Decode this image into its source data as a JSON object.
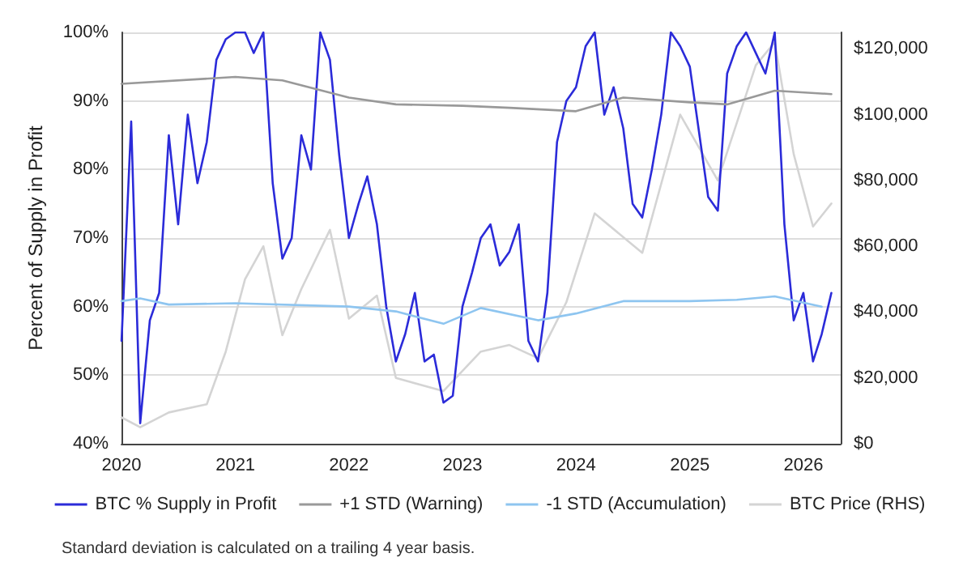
{
  "chart_data": {
    "type": "line",
    "ylabel": "Percent of Supply in Profit",
    "annotations": [
      "Standard deviation is calculated on a trailing 4 year basis."
    ],
    "x": [
      "2020-01",
      "2020-02",
      "2020-03",
      "2020-04",
      "2020-05",
      "2020-06",
      "2020-07",
      "2020-08",
      "2020-09",
      "2020-10",
      "2020-11",
      "2020-12",
      "2021-01",
      "2021-02",
      "2021-03",
      "2021-04",
      "2021-05",
      "2021-06",
      "2021-07",
      "2021-08",
      "2021-09",
      "2021-10",
      "2021-11",
      "2021-12",
      "2022-01",
      "2022-02",
      "2022-03",
      "2022-04",
      "2022-05",
      "2022-06",
      "2022-07",
      "2022-08",
      "2022-09",
      "2022-10",
      "2022-11",
      "2022-12",
      "2023-01",
      "2023-02",
      "2023-03",
      "2023-04",
      "2023-05",
      "2023-06",
      "2023-07",
      "2023-08",
      "2023-09",
      "2023-10",
      "2023-11",
      "2023-12",
      "2024-01",
      "2024-02",
      "2024-03",
      "2024-04",
      "2024-05",
      "2024-06",
      "2024-07",
      "2024-08",
      "2024-09",
      "2024-10",
      "2024-11",
      "2024-12",
      "2025-01",
      "2025-02",
      "2025-03",
      "2025-04",
      "2025-05",
      "2025-06",
      "2025-07",
      "2025-08",
      "2025-09",
      "2025-10",
      "2025-11",
      "2025-12",
      "2026-01",
      "2026-02",
      "2026-03",
      "2026-04"
    ],
    "series": [
      {
        "name": "BTC % Supply in Profit",
        "color": "#2b2bd9",
        "values": [
          55,
          87,
          43,
          58,
          62,
          85,
          72,
          88,
          78,
          84,
          96,
          99,
          100,
          100,
          97,
          100,
          78,
          67,
          70,
          85,
          80,
          100,
          96,
          82,
          70,
          75,
          79,
          72,
          60,
          52,
          56,
          62,
          52,
          53,
          46,
          47,
          60,
          65,
          70,
          72,
          66,
          68,
          72,
          55,
          52,
          62,
          84,
          90,
          92,
          98,
          100,
          88,
          92,
          86,
          75,
          73,
          80,
          88,
          100,
          98,
          95,
          85,
          76,
          74,
          94,
          98,
          100,
          97,
          94,
          100,
          72,
          58,
          62,
          52,
          56,
          62
        ]
      },
      {
        "name": "+1 STD (Warning)",
        "color": "#999999",
        "x": [
          "2020-01",
          "2021-01",
          "2021-06",
          "2022-01",
          "2022-06",
          "2023-01",
          "2023-06",
          "2024-01",
          "2024-06",
          "2025-01",
          "2025-05",
          "2025-10",
          "2026-04"
        ],
        "values": [
          92.5,
          93.5,
          93,
          90.5,
          89.5,
          89.3,
          89,
          88.5,
          90.5,
          89.8,
          89.5,
          91.5,
          91
        ]
      },
      {
        "name": "-1 STD (Accumulation)",
        "color": "#8ec5f0",
        "x": [
          "2020-01",
          "2020-03",
          "2020-06",
          "2021-01",
          "2022-01",
          "2022-06",
          "2022-11",
          "2023-03",
          "2023-09",
          "2024-01",
          "2024-06",
          "2025-01",
          "2025-06",
          "2025-10",
          "2026-03"
        ],
        "values": [
          60.8,
          61.2,
          60.3,
          60.5,
          60,
          59.3,
          57.5,
          59.8,
          58,
          59,
          60.8,
          60.8,
          61,
          61.5,
          60
        ]
      },
      {
        "name": "BTC Price (RHS)",
        "color": "#d4d4d4",
        "axis": "y2",
        "x": [
          "2020-01",
          "2020-03",
          "2020-06",
          "2020-10",
          "2020-12",
          "2021-02",
          "2021-04",
          "2021-06",
          "2021-08",
          "2021-11",
          "2022-01",
          "2022-04",
          "2022-06",
          "2022-11",
          "2023-03",
          "2023-06",
          "2023-09",
          "2023-12",
          "2024-03",
          "2024-08",
          "2024-12",
          "2025-04",
          "2025-08",
          "2025-10",
          "2025-12",
          "2026-02",
          "2026-04"
        ],
        "values": [
          8000,
          5000,
          9500,
          12000,
          28000,
          50000,
          60000,
          33000,
          47000,
          65000,
          38000,
          45000,
          20000,
          16000,
          28000,
          30000,
          26000,
          43000,
          70000,
          58000,
          100000,
          80000,
          115000,
          122000,
          88000,
          66000,
          73000
        ]
      }
    ],
    "xlim": [
      "2020-01",
      "2026-05"
    ],
    "xticks": [
      "2020",
      "2021",
      "2022",
      "2023",
      "2024",
      "2025",
      "2026"
    ],
    "ylim": [
      40,
      100
    ],
    "yticks": [
      {
        "value": 40,
        "label": "40%"
      },
      {
        "value": 50,
        "label": "50%"
      },
      {
        "value": 60,
        "label": "60%"
      },
      {
        "value": 70,
        "label": "70%"
      },
      {
        "value": 80,
        "label": "80%"
      },
      {
        "value": 90,
        "label": "90%"
      },
      {
        "value": 100,
        "label": "100%"
      }
    ],
    "y2lim": [
      0,
      125000
    ],
    "y2ticks": [
      {
        "value": 0,
        "label": "$0"
      },
      {
        "value": 20000,
        "label": "$20,000"
      },
      {
        "value": 40000,
        "label": "$40,000"
      },
      {
        "value": 60000,
        "label": "$60,000"
      },
      {
        "value": 80000,
        "label": "$80,000"
      },
      {
        "value": 100000,
        "label": "$100,000"
      },
      {
        "value": 120000,
        "label": "$120,000"
      }
    ],
    "grid": "y",
    "legend": "bottom",
    "marker": "none",
    "line_style": "solid"
  }
}
